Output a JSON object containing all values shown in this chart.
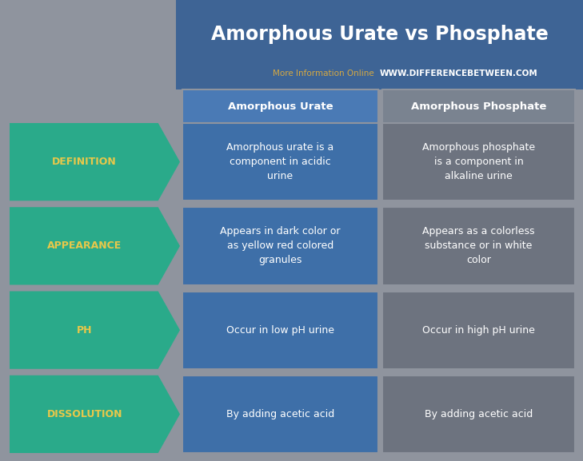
{
  "title": "Amorphous Urate vs Phosphate",
  "subtitle_regular": "More Information Online  ",
  "subtitle_bold": "WWW.DIFFERENCEBETWEEN.COM",
  "col1_header": "Amorphous Urate",
  "col2_header": "Amorphous Phosphate",
  "rows": [
    {
      "label": "DEFINITION",
      "col1": "Amorphous urate is a\ncomponent in acidic\nurine",
      "col2": "Amorphous phosphate\nis a component in\nalkaline urine"
    },
    {
      "label": "APPEARANCE",
      "col1": "Appears in dark color or\nas yellow red colored\ngranules",
      "col2": "Appears as a colorless\nsubstance or in white\ncolor"
    },
    {
      "label": "PH",
      "col1": "Occur in low pH urine",
      "col2": "Occur in high pH urine"
    },
    {
      "label": "DISSOLUTION",
      "col1": "By adding acetic acid",
      "col2": "By adding acetic acid"
    }
  ],
  "bg_color": "#8f949e",
  "title_bg_color": "#3e6495",
  "header_col1_color": "#4a7ab5",
  "header_col2_color": "#7a8390",
  "col1_cell_color": "#3e6fa8",
  "col2_cell_color": "#6d737f",
  "arrow_color": "#2aaa8a",
  "title_color": "#ffffff",
  "subtitle_regular_color": "#d4a843",
  "subtitle_bold_color": "#ffffff",
  "header_text_color": "#ffffff",
  "cell_text_color": "#ffffff",
  "label_text_color": "#e8c84a",
  "fig_width": 7.29,
  "fig_height": 5.77,
  "dpi": 100
}
